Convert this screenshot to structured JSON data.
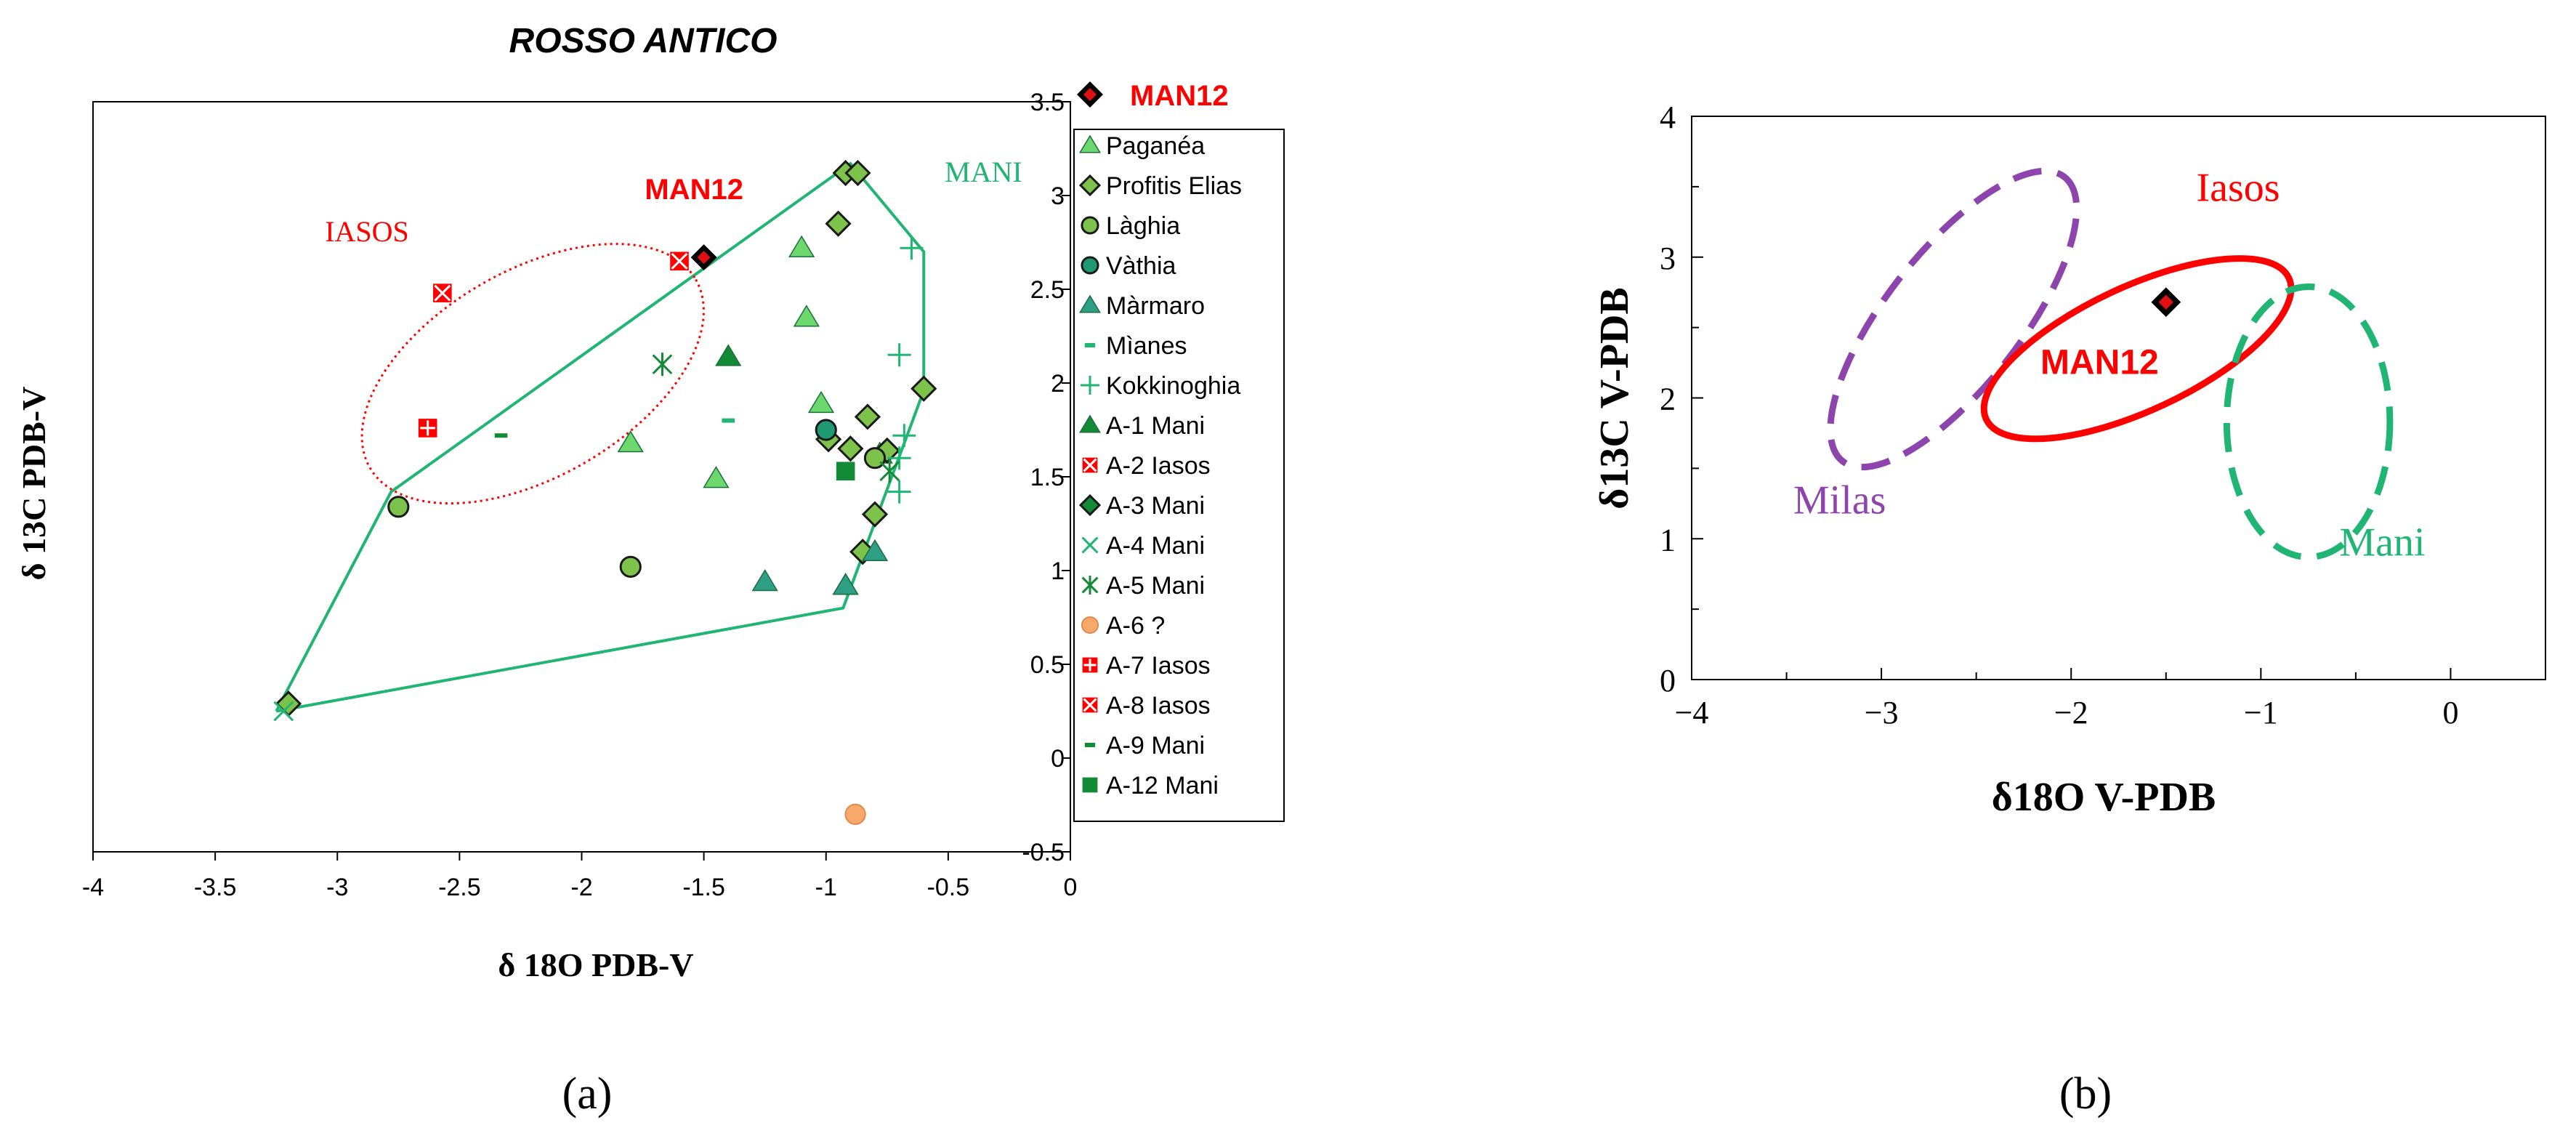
{
  "figure": {
    "panel_a_label": "(a)",
    "panel_b_label": "(b)"
  },
  "chart_data": [
    {
      "type": "scatter",
      "panel": "a",
      "title": "ROSSO ANTICO",
      "xlabel": "δ 18O PDB-V",
      "ylabel": "δ 13C PDB-V",
      "xlim": [
        -4,
        0
      ],
      "ylim": [
        -0.5,
        3.5
      ],
      "xticks": [
        "-4",
        "-3.5",
        "-3",
        "-2.5",
        "-2",
        "-1.5",
        "-1",
        "-0.5",
        "0"
      ],
      "yticks": [
        "-0.5",
        "0",
        "0.5",
        "1",
        "1.5",
        "2",
        "2.5",
        "3",
        "3.5"
      ],
      "grid": false,
      "legend_position": "right",
      "colors": {
        "mani": "#21b573",
        "iasos": "#ff0000",
        "light_green": "#6dd86d",
        "olive_green": "#7dc24b",
        "dark_green": "#138a36",
        "orange": "#f7a86a",
        "black": "#000000"
      },
      "regions": [
        {
          "name": "MANI",
          "label": "MANI",
          "shape": "polygon",
          "color": "#21b573",
          "points": [
            [
              -3.25,
              0.25
            ],
            [
              -2.78,
              1.42
            ],
            [
              -0.9,
              3.17
            ],
            [
              -0.6,
              2.7
            ],
            [
              -0.6,
              1.96
            ],
            [
              -0.93,
              0.8
            ],
            [
              -3.25,
              0.25
            ]
          ]
        },
        {
          "name": "IASOS",
          "label": "IASOS",
          "shape": "ellipse",
          "color": "#ff0000",
          "center": [
            -2.2,
            2.05
          ],
          "radii": [
            0.77,
            0.55
          ],
          "rotation_deg": 30
        }
      ],
      "annotations": [
        {
          "text": "MAN12",
          "x": -1.54,
          "y": 2.98,
          "color": "#ff0000"
        }
      ],
      "highlight": {
        "name": "MAN12",
        "x": -1.5,
        "y": 2.67,
        "marker": "diamond-black-red",
        "legend_label": "MAN12"
      },
      "series": [
        {
          "name": "Paganéa",
          "marker": "triangle",
          "color": "#6dd86d",
          "points": [
            [
              -1.1,
              2.72
            ],
            [
              -1.08,
              2.35
            ],
            [
              -1.02,
              1.89
            ],
            [
              -1.8,
              1.68
            ],
            [
              -1.45,
              1.49
            ],
            [
              -0.78,
              1.62
            ],
            [
              -0.92,
              0.92
            ]
          ]
        },
        {
          "name": "Profitis Elias",
          "marker": "diamond",
          "color": "#7dc24b",
          "points": [
            [
              -0.92,
              3.12
            ],
            [
              -0.87,
              3.12
            ],
            [
              -0.95,
              2.85
            ],
            [
              -0.83,
              1.82
            ],
            [
              -0.99,
              1.7
            ],
            [
              -0.9,
              1.65
            ],
            [
              -0.75,
              1.64
            ],
            [
              -0.6,
              1.97
            ],
            [
              -0.8,
              1.3
            ],
            [
              -0.85,
              1.1
            ],
            [
              -3.2,
              0.29
            ]
          ]
        },
        {
          "name": "Làghia",
          "marker": "circle",
          "color": "#7dc24b",
          "points": [
            [
              -2.75,
              1.34
            ],
            [
              -1.8,
              1.02
            ],
            [
              -0.8,
              1.6
            ]
          ]
        },
        {
          "name": "Vàthia",
          "marker": "circle",
          "color": "#1f9a73",
          "points": [
            [
              -1.0,
              1.75
            ]
          ]
        },
        {
          "name": "Màrmaro",
          "marker": "triangle",
          "color": "#2e9e86",
          "points": [
            [
              -1.25,
              0.94
            ],
            [
              -0.8,
              1.1
            ],
            [
              -0.92,
              0.92
            ]
          ]
        },
        {
          "name": "Mìanes",
          "marker": "dash",
          "color": "#21b573",
          "points": [
            [
              -1.4,
              1.8
            ]
          ]
        },
        {
          "name": "Kokkinoghia",
          "marker": "plus",
          "color": "#21b573",
          "points": [
            [
              -0.65,
              2.72
            ],
            [
              -0.7,
              2.15
            ],
            [
              -0.7,
              1.6
            ],
            [
              -0.7,
              1.42
            ],
            [
              -0.68,
              1.72
            ]
          ]
        },
        {
          "name": "A-1 Mani",
          "marker": "triangle",
          "color": "#138a36",
          "points": [
            [
              -1.4,
              2.14
            ]
          ]
        },
        {
          "name": "A-2 Iasos",
          "marker": "square-cross",
          "color": "#ff0000",
          "points": [
            [
              -2.57,
              2.48
            ]
          ]
        },
        {
          "name": "A-3 Mani",
          "marker": "diamond",
          "color": "#138a36",
          "points": []
        },
        {
          "name": "A-4 Mani",
          "marker": "x",
          "color": "#21b573",
          "points": [
            [
              -3.22,
              0.25
            ]
          ]
        },
        {
          "name": "A-5 Mani",
          "marker": "asterisk",
          "color": "#138a36",
          "points": [
            [
              -1.67,
              2.1
            ],
            [
              -0.74,
              1.53
            ]
          ]
        },
        {
          "name": "A-6 ?",
          "marker": "circle",
          "color": "#f7a86a",
          "points": [
            [
              -0.88,
              -0.3
            ]
          ]
        },
        {
          "name": "A-7 Iasos",
          "marker": "square-plus",
          "color": "#ff0000",
          "points": [
            [
              -2.63,
              1.76
            ]
          ]
        },
        {
          "name": "A-8 Iasos",
          "marker": "square-x",
          "color": "#ff0000",
          "points": [
            [
              -1.6,
              2.65
            ]
          ]
        },
        {
          "name": "A-9 Mani",
          "marker": "dash",
          "color": "#138a36",
          "points": [
            [
              -2.33,
              1.72
            ]
          ]
        },
        {
          "name": "A-12 Mani",
          "marker": "square",
          "color": "#138a36",
          "points": [
            [
              -0.92,
              1.53
            ]
          ]
        }
      ]
    },
    {
      "type": "scatter",
      "panel": "b",
      "title": "",
      "xlabel": "δ18O V-PDB",
      "ylabel": "δ13C V-PDB",
      "xlim": [
        -4,
        0.5
      ],
      "ylim": [
        0,
        4
      ],
      "xticks": [
        "−4",
        "−3",
        "−2",
        "−1",
        "0"
      ],
      "yticks": [
        "0",
        "1",
        "2",
        "3",
        "4"
      ],
      "grid": false,
      "regions": [
        {
          "name": "Milas",
          "label": "Milas",
          "shape": "ellipse",
          "style": "dashed",
          "color": "#8e44ad",
          "center": [
            -2.62,
            2.56
          ],
          "radii": [
            0.95,
            0.48
          ],
          "rotation_deg": 52,
          "label_x": -3.22,
          "label_y": 1.18
        },
        {
          "name": "Iasos",
          "label": "Iasos",
          "shape": "ellipse",
          "style": "solid",
          "color": "#ff0000",
          "center": [
            -1.65,
            2.35
          ],
          "radii": [
            0.88,
            0.44
          ],
          "rotation_deg": 25,
          "label_x": -1.12,
          "label_y": 3.4
        },
        {
          "name": "Mani",
          "label": "Mani",
          "shape": "ellipse",
          "style": "dashed",
          "color": "#21b573",
          "center": [
            -0.75,
            1.83
          ],
          "radii": [
            0.43,
            0.96
          ],
          "rotation_deg": 0,
          "label_x": -0.36,
          "label_y": 0.88
        }
      ],
      "annotations": [
        {
          "text": "MAN12",
          "x": -1.85,
          "y": 2.17,
          "color": "#ff0000"
        }
      ],
      "points": [
        {
          "name": "MAN12",
          "x": -1.5,
          "y": 2.68,
          "marker": "diamond-black-red"
        }
      ]
    }
  ]
}
